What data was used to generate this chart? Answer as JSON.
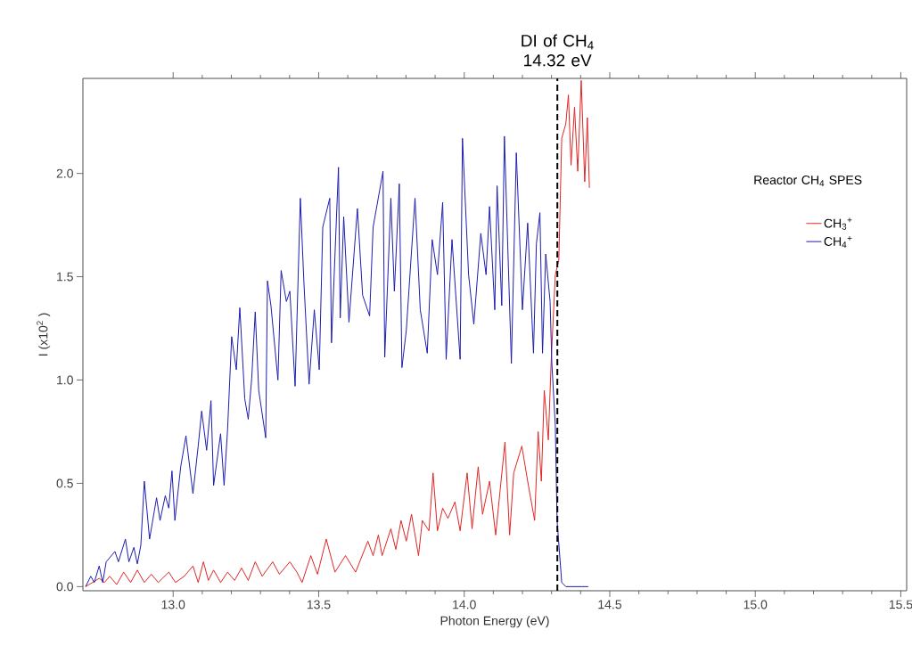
{
  "chart_data": {
    "type": "line",
    "xlabel": "Photon Energy (eV)",
    "ylabel": "I (x10$^{2}$ )",
    "xlim": [
      12.69,
      15.52
    ],
    "ylim": [
      -0.02,
      2.46
    ],
    "xticks": [
      {
        "value": 13.0,
        "label": "13.0"
      },
      {
        "value": 13.5,
        "label": "13.5"
      },
      {
        "value": 14.0,
        "label": "14.0"
      },
      {
        "value": 14.5,
        "label": "14.5"
      },
      {
        "value": 15.0,
        "label": "15.0"
      },
      {
        "value": 15.5,
        "label": "15.5"
      }
    ],
    "yticks": [
      {
        "value": 0.0,
        "label": "0.0"
      },
      {
        "value": 0.5,
        "label": "0.5"
      },
      {
        "value": 1.0,
        "label": "1.0"
      },
      {
        "value": 1.5,
        "label": "1.5"
      },
      {
        "value": 2.0,
        "label": "2.0"
      }
    ],
    "legend": "top right",
    "legend_title": "Reactor CH$_{4}$ SPES",
    "ref_lines": [
      {
        "axis": "x",
        "value": 14.32,
        "label": "DI of CH$_{4}$ 14.32 eV",
        "color": "#000000",
        "line_style": "dashed"
      }
    ],
    "series": [
      {
        "name": "CH$_{3}$$^{+}$",
        "color": "#e02424",
        "x": [
          12.699,
          12.723,
          12.746,
          12.764,
          12.782,
          12.806,
          12.83,
          12.854,
          12.877,
          12.901,
          12.925,
          12.949,
          12.985,
          13.008,
          13.038,
          13.068,
          13.086,
          13.104,
          13.121,
          13.139,
          13.163,
          13.187,
          13.211,
          13.235,
          13.258,
          13.282,
          13.306,
          13.342,
          13.365,
          13.401,
          13.425,
          13.443,
          13.473,
          13.496,
          13.526,
          13.556,
          13.592,
          13.627,
          13.669,
          13.687,
          13.705,
          13.718,
          13.748,
          13.765,
          13.783,
          13.801,
          13.819,
          13.843,
          13.856,
          13.879,
          13.893,
          13.908,
          13.926,
          13.944,
          13.968,
          13.986,
          14.01,
          14.027,
          14.048,
          14.063,
          14.087,
          14.108,
          14.14,
          14.156,
          14.17,
          14.198,
          14.218,
          14.242,
          14.254,
          14.265,
          14.275,
          14.289,
          14.299,
          14.313,
          14.325,
          14.335,
          14.349,
          14.358,
          14.367,
          14.379,
          14.39,
          14.402,
          14.414,
          14.423,
          14.43
        ],
        "values": [
          0.0,
          0.02,
          0.04,
          0.02,
          0.05,
          0.01,
          0.07,
          0.02,
          0.08,
          0.02,
          0.06,
          0.02,
          0.07,
          0.02,
          0.05,
          0.1,
          0.02,
          0.12,
          0.03,
          0.08,
          0.02,
          0.07,
          0.03,
          0.09,
          0.03,
          0.12,
          0.05,
          0.12,
          0.06,
          0.12,
          0.07,
          0.02,
          0.15,
          0.06,
          0.23,
          0.07,
          0.15,
          0.07,
          0.22,
          0.15,
          0.25,
          0.15,
          0.28,
          0.18,
          0.32,
          0.22,
          0.35,
          0.15,
          0.32,
          0.27,
          0.55,
          0.27,
          0.38,
          0.33,
          0.41,
          0.27,
          0.55,
          0.28,
          0.58,
          0.35,
          0.51,
          0.25,
          0.7,
          0.25,
          0.55,
          0.68,
          0.51,
          0.32,
          0.75,
          0.51,
          0.95,
          0.71,
          1.1,
          1.51,
          1.58,
          2.17,
          2.24,
          2.38,
          2.04,
          2.32,
          2.01,
          2.45,
          1.96,
          2.27,
          1.93
        ]
      },
      {
        "name": "CH$_{4}$$^{+}$",
        "color": "#1c1cae",
        "x": [
          12.699,
          12.717,
          12.729,
          12.746,
          12.758,
          12.77,
          12.8,
          12.812,
          12.836,
          12.848,
          12.865,
          12.877,
          12.889,
          12.901,
          12.919,
          12.943,
          12.955,
          12.973,
          12.985,
          12.996,
          13.006,
          13.026,
          13.044,
          13.068,
          13.086,
          13.098,
          13.115,
          13.13,
          13.139,
          13.163,
          13.175,
          13.187,
          13.201,
          13.217,
          13.229,
          13.246,
          13.258,
          13.27,
          13.282,
          13.294,
          13.318,
          13.324,
          13.336,
          13.36,
          13.371,
          13.389,
          13.401,
          13.419,
          13.437,
          13.449,
          13.467,
          13.485,
          13.502,
          13.514,
          13.538,
          13.544,
          13.568,
          13.574,
          13.586,
          13.604,
          13.633,
          13.651,
          13.675,
          13.687,
          13.721,
          13.727,
          13.748,
          13.76,
          13.777,
          13.786,
          13.801,
          13.831,
          13.849,
          13.873,
          13.89,
          13.908,
          13.926,
          13.938,
          13.958,
          13.986,
          13.994,
          14.015,
          14.033,
          14.057,
          14.075,
          14.087,
          14.105,
          14.113,
          14.129,
          14.138,
          14.162,
          14.179,
          14.2,
          14.218,
          14.238,
          14.248,
          14.26,
          14.269,
          14.28,
          14.295,
          14.301,
          14.313,
          14.319,
          14.335,
          14.349,
          14.373,
          14.408,
          14.426
        ],
        "values": [
          0.0,
          0.05,
          0.02,
          0.1,
          0.02,
          0.12,
          0.17,
          0.12,
          0.23,
          0.12,
          0.19,
          0.11,
          0.2,
          0.51,
          0.23,
          0.43,
          0.32,
          0.44,
          0.38,
          0.56,
          0.32,
          0.58,
          0.73,
          0.45,
          0.68,
          0.85,
          0.66,
          0.9,
          0.49,
          0.74,
          0.49,
          0.76,
          1.21,
          1.05,
          1.35,
          0.91,
          0.81,
          1.01,
          1.33,
          0.95,
          0.72,
          1.48,
          1.36,
          1.0,
          1.53,
          1.38,
          1.43,
          0.97,
          1.88,
          1.48,
          0.98,
          1.34,
          1.05,
          1.74,
          1.88,
          1.18,
          2.03,
          1.3,
          1.79,
          1.28,
          1.83,
          1.41,
          1.31,
          1.74,
          2.01,
          1.11,
          1.88,
          1.43,
          1.95,
          1.06,
          1.24,
          1.88,
          1.34,
          1.13,
          1.68,
          1.51,
          1.86,
          1.1,
          1.68,
          1.1,
          2.17,
          1.51,
          1.27,
          1.71,
          1.51,
          1.84,
          1.34,
          1.94,
          1.36,
          2.18,
          1.08,
          2.1,
          1.34,
          1.76,
          1.13,
          1.66,
          1.81,
          1.13,
          1.61,
          1.38,
          1.08,
          0.78,
          0.32,
          0.02,
          0.0,
          0.0,
          0.0,
          0.0
        ]
      }
    ]
  }
}
